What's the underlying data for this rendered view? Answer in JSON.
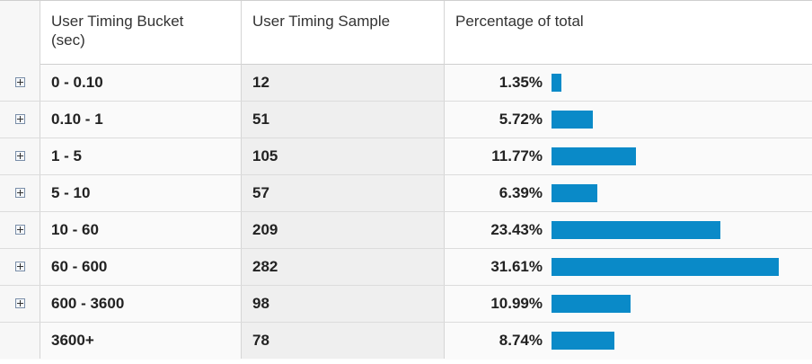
{
  "table": {
    "headers": [
      "User Timing Bucket\n(sec)",
      "User Timing Sample",
      "Percentage of total"
    ],
    "header_bucket": "User Timing Bucket",
    "header_bucket_unit": "(sec)",
    "header_sample": "User Timing Sample",
    "header_percent": "Percentage of total",
    "bar_color": "#0a8ac8",
    "rows": [
      {
        "bucket": "0 - 0.10",
        "sample": "12",
        "percent": "1.35%",
        "share": 1.35,
        "expandable": true
      },
      {
        "bucket": "0.10 - 1",
        "sample": "51",
        "percent": "5.72%",
        "share": 5.72,
        "expandable": true
      },
      {
        "bucket": "1 - 5",
        "sample": "105",
        "percent": "11.77%",
        "share": 11.77,
        "expandable": true
      },
      {
        "bucket": "5 - 10",
        "sample": "57",
        "percent": "6.39%",
        "share": 6.39,
        "expandable": true
      },
      {
        "bucket": "10 - 60",
        "sample": "209",
        "percent": "23.43%",
        "share": 23.43,
        "expandable": true
      },
      {
        "bucket": "60 - 600",
        "sample": "282",
        "percent": "31.61%",
        "share": 31.61,
        "expandable": true
      },
      {
        "bucket": "600 - 3600",
        "sample": "98",
        "percent": "10.99%",
        "share": 10.99,
        "expandable": true
      },
      {
        "bucket": "3600+",
        "sample": "78",
        "percent": "8.74%",
        "share": 8.74,
        "expandable": false
      }
    ]
  }
}
